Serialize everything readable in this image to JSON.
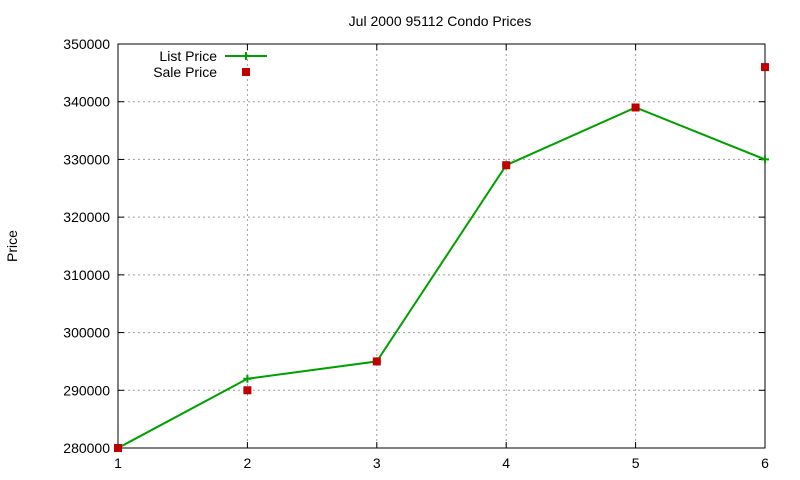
{
  "chart_data": {
    "type": "line",
    "title": "Jul 2000 95112 Condo Prices",
    "xlabel": "",
    "ylabel": "Price",
    "x": [
      1,
      2,
      3,
      4,
      5,
      6
    ],
    "xlim": [
      1,
      6
    ],
    "ylim": [
      280000,
      350000
    ],
    "x_ticks": [
      "1",
      "2",
      "3",
      "4",
      "5",
      "6"
    ],
    "y_ticks": [
      "280000",
      "290000",
      "300000",
      "310000",
      "320000",
      "330000",
      "340000",
      "350000"
    ],
    "grid": true,
    "legend_position": "top-left",
    "series": [
      {
        "name": "List Price",
        "style": "line-with-plus-markers",
        "color": "#00a000",
        "values": [
          280000,
          292000,
          295000,
          329000,
          339000,
          330000
        ]
      },
      {
        "name": "Sale Price",
        "style": "square-markers",
        "color": "#c00000",
        "values": [
          280000,
          290000,
          295000,
          329000,
          339000,
          346000
        ]
      }
    ]
  }
}
